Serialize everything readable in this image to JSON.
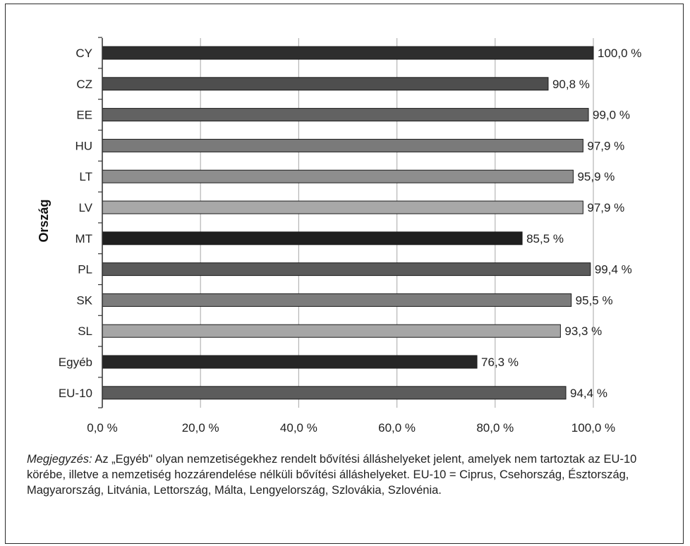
{
  "chart_data": {
    "type": "bar",
    "orientation": "horizontal",
    "ylabel": "Ország",
    "xlabel": "",
    "categories": [
      "CY",
      "CZ",
      "EE",
      "HU",
      "LT",
      "LV",
      "MT",
      "PL",
      "SK",
      "SL",
      "Egyéb",
      "EU-10"
    ],
    "values": [
      100.0,
      90.8,
      99.0,
      97.9,
      95.9,
      97.9,
      85.5,
      99.4,
      95.5,
      93.3,
      76.3,
      94.4
    ],
    "value_labels": [
      "100,0 %",
      "90,8 %",
      "99,0 %",
      "97,9 %",
      "95,9 %",
      "97,9 %",
      "85,5 %",
      "99,4 %",
      "95,5 %",
      "93,3 %",
      "76,3 %",
      "94,4 %"
    ],
    "bar_colors": [
      "#2e2e2e",
      "#4e4e4e",
      "#626262",
      "#7a7a7a",
      "#8e8e8e",
      "#a8a8a8",
      "#1f1f1f",
      "#5a5a5a",
      "#7c7c7c",
      "#a6a6a6",
      "#262626",
      "#5c5c5c"
    ],
    "xlim": [
      0,
      100
    ],
    "xticks": [
      0,
      20,
      40,
      60,
      80,
      100
    ],
    "xtick_labels": [
      "0,0 %",
      "20,0 %",
      "40,0 %",
      "60,0 %",
      "80,0 %",
      "100,0 %"
    ],
    "grid": true,
    "legend": false
  },
  "note": {
    "label": "Megjegyzés:",
    "text": " Az „Egyéb\" olyan nemzetiségekhez rendelt bővítési álláshelyeket jelent, amelyek nem tartoztak az EU-10 körébe, illetve a nemzetiség hozzárendelése nélküli bővítési álláshelyeket. EU-10 = Ciprus, Csehország, Észtország, Magyarország, Litvánia, Lettország, Málta, Lengyelország, Szlovákia, Szlovénia."
  }
}
